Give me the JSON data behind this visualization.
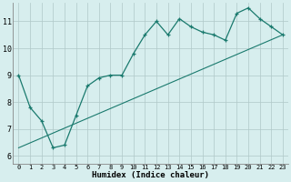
{
  "xlabel": "Humidex (Indice chaleur)",
  "bg_color": "#d7eeee",
  "grid_color": "#b0c8c8",
  "line_color": "#1a7a6e",
  "xlim": [
    -0.5,
    23.5
  ],
  "ylim": [
    5.7,
    11.7
  ],
  "yticks": [
    6,
    7,
    8,
    9,
    10,
    11
  ],
  "xticks": [
    0,
    1,
    2,
    3,
    4,
    5,
    6,
    7,
    8,
    9,
    10,
    11,
    12,
    13,
    14,
    15,
    16,
    17,
    18,
    19,
    20,
    21,
    22,
    23
  ],
  "series1_x": [
    0,
    1,
    2,
    3,
    4,
    5,
    6,
    7,
    8,
    9,
    10,
    11,
    12,
    13,
    14,
    15,
    16,
    17,
    18,
    19,
    20,
    21,
    22,
    23
  ],
  "series1_y": [
    9.0,
    7.8,
    7.3,
    6.3,
    6.4,
    7.5,
    8.6,
    8.9,
    9.0,
    9.0,
    9.8,
    10.5,
    11.0,
    10.5,
    11.1,
    10.8,
    10.6,
    10.5,
    10.3,
    11.3,
    11.5,
    11.1,
    10.8,
    10.5
  ],
  "series2_x": [
    0,
    23
  ],
  "series2_y": [
    6.3,
    10.5
  ]
}
